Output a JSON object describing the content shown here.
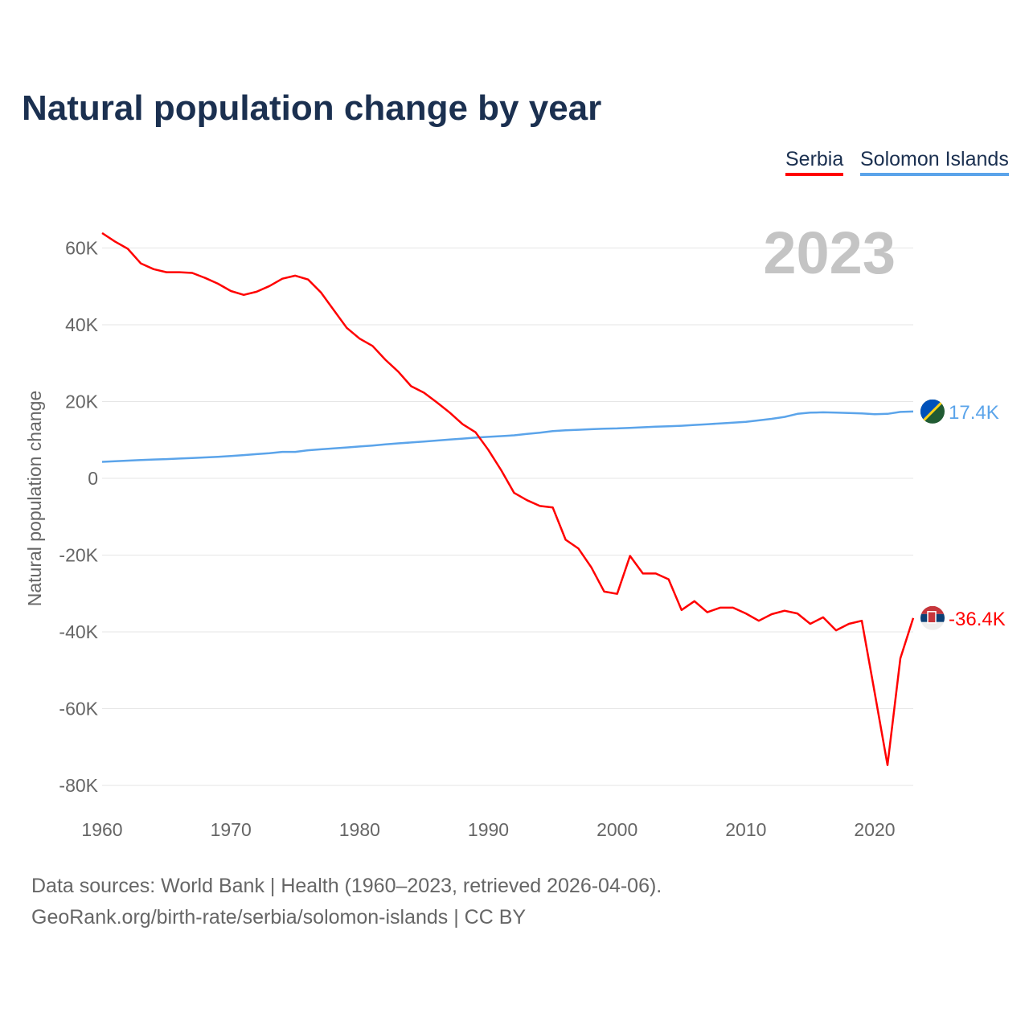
{
  "title": "Natural population change by year",
  "legend": [
    "Serbia",
    "Solomon Islands"
  ],
  "year_watermark": "2023",
  "footer": {
    "line1": "Data sources: World Bank | Health (1960–2023, retrieved 2026-04-06).",
    "line2": "GeoRank.org/birth-rate/serbia/solomon-islands | CC BY"
  },
  "chart_data": {
    "type": "line",
    "title": "Natural population change by year",
    "xlabel": "",
    "ylabel": "Natural population change",
    "xlim": [
      1960,
      2023
    ],
    "ylim": [
      -80000,
      60000
    ],
    "x_ticks": [
      1960,
      1970,
      1980,
      1990,
      2000,
      2010,
      2020
    ],
    "x_tick_labels": [
      "1960",
      "1970",
      "1980",
      "1990",
      "2000",
      "2010",
      "2020"
    ],
    "y_ticks": [
      60000,
      40000,
      20000,
      0,
      -20000,
      -40000,
      -60000,
      -80000
    ],
    "y_tick_labels": [
      "60K",
      "40K",
      "20K",
      "0",
      "-20K",
      "-40K",
      "-60K",
      "-80K"
    ],
    "grid": true,
    "legend_position": "top-right",
    "series": [
      {
        "name": "Serbia",
        "color": "#ff0000",
        "end_label": "-36.4K",
        "flag": "serbia-flag",
        "values": [
          63900,
          61700,
          59800,
          56000,
          54500,
          53700,
          53700,
          53500,
          52200,
          50700,
          48800,
          47800,
          48600,
          50100,
          52000,
          52800,
          51800,
          48400,
          43800,
          39200,
          36400,
          34500,
          30900,
          27800,
          24000,
          22300,
          19800,
          17100,
          14100,
          12000,
          7400,
          2100,
          -3800,
          -5700,
          -7200,
          -7600,
          -16000,
          -18300,
          -23200,
          -29500,
          -30100,
          -20200,
          -24800,
          -24800,
          -26300,
          -34300,
          -32000,
          -34900,
          -33700,
          -33700,
          -35200,
          -37100,
          -35400,
          -34500,
          -35200,
          -37900,
          -36200,
          -39600,
          -37900,
          -37100,
          -55800,
          -74700,
          -46900,
          -36400
        ]
      },
      {
        "name": "Solomon Islands",
        "color": "#5ba4ea",
        "end_label": "17.4K",
        "flag": "solomon-islands-flag",
        "values": [
          4300,
          4450,
          4600,
          4750,
          4900,
          5000,
          5150,
          5300,
          5450,
          5600,
          5800,
          6050,
          6300,
          6550,
          6900,
          6900,
          7300,
          7550,
          7800,
          8050,
          8300,
          8550,
          8850,
          9100,
          9350,
          9600,
          9850,
          10100,
          10350,
          10600,
          10800,
          11000,
          11200,
          11550,
          11900,
          12300,
          12500,
          12650,
          12800,
          12950,
          13000,
          13150,
          13300,
          13450,
          13550,
          13700,
          13900,
          14100,
          14300,
          14500,
          14700,
          15100,
          15500,
          16000,
          16800,
          17100,
          17200,
          17100,
          17000,
          16900,
          16700,
          16800,
          17300,
          17400
        ]
      }
    ]
  }
}
